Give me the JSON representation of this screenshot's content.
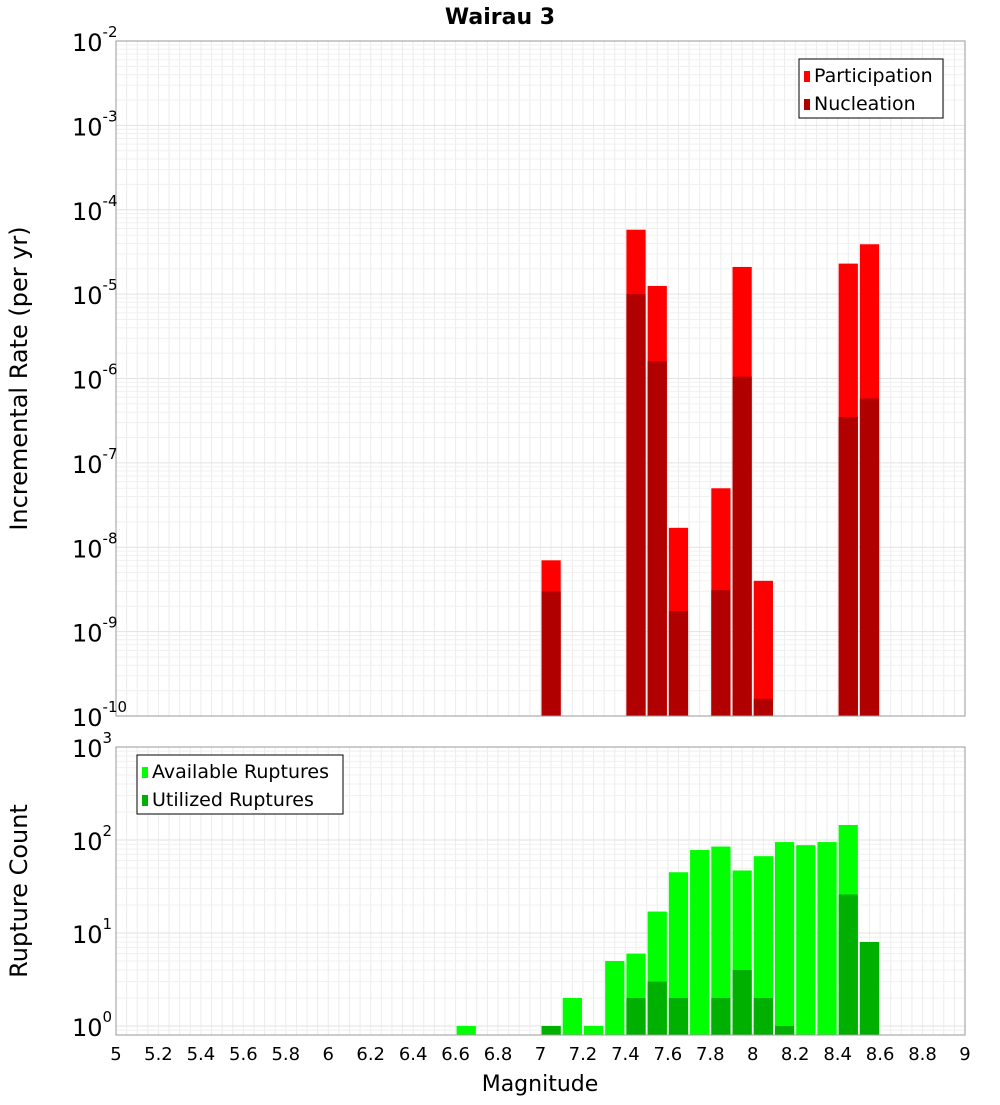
{
  "chart_data": {
    "title": "Wairau 3",
    "xlabel": "Magnitude",
    "xlim": [
      5,
      9
    ],
    "x_ticks": [
      "5",
      "5.2",
      "5.4",
      "5.6",
      "5.8",
      "6",
      "6.2",
      "6.4",
      "6.6",
      "6.8",
      "7",
      "7.2",
      "7.4",
      "7.6",
      "7.8",
      "8",
      "8.2",
      "8.4",
      "8.6",
      "8.8",
      "9"
    ],
    "bin_width": 0.1,
    "grid": true,
    "panels": [
      {
        "type": "bar",
        "ylabel": "Incremental Rate (per yr)",
        "yscale": "log",
        "ylim": [
          1e-10,
          0.01
        ],
        "y_tick_exponents": [
          "-10",
          "-9",
          "-8",
          "-7",
          "-6",
          "-5",
          "-4",
          "-3",
          "-2"
        ],
        "legend_position": "top-right",
        "series": [
          {
            "name": "Participation",
            "color": "#ff0000",
            "x": [
              7.05,
              7.45,
              7.55,
              7.65,
              7.85,
              7.95,
              8.05,
              8.45,
              8.55
            ],
            "values": [
              7e-09,
              5.8e-05,
              1.25e-05,
              1.7e-08,
              5e-08,
              2.1e-05,
              4e-09,
              2.3e-05,
              3.9e-05
            ]
          },
          {
            "name": "Nucleation",
            "color": "#b00000",
            "x": [
              7.05,
              7.45,
              7.55,
              7.65,
              7.85,
              7.95,
              8.05,
              8.45,
              8.55
            ],
            "values": [
              3e-09,
              1e-05,
              1.6e-06,
              1.75e-09,
              3.1e-09,
              1.05e-06,
              1.6e-10,
              3.5e-07,
              5.8e-07
            ]
          }
        ]
      },
      {
        "type": "bar",
        "ylabel": "Rupture Count",
        "yscale": "log",
        "ylim": [
          0.8,
          1000
        ],
        "y_tick_exponents": [
          "0",
          "1",
          "2",
          "3"
        ],
        "legend_position": "top-left",
        "series": [
          {
            "name": "Available Ruptures",
            "color": "#00ff00",
            "x": [
              6.65,
              7.05,
              7.15,
              7.25,
              7.35,
              7.45,
              7.55,
              7.65,
              7.75,
              7.85,
              7.95,
              8.05,
              8.15,
              8.25,
              8.35,
              8.45,
              8.55
            ],
            "values": [
              1,
              1,
              2,
              1,
              5,
              6,
              17,
              45,
              78,
              85,
              47,
              67,
              95,
              88,
              95,
              145,
              8
            ]
          },
          {
            "name": "Utilized Ruptures",
            "color": "#00b000",
            "x": [
              7.05,
              7.45,
              7.55,
              7.65,
              7.85,
              7.95,
              8.05,
              8.15,
              8.45,
              8.55
            ],
            "values": [
              1,
              2,
              3,
              2,
              2,
              4,
              2,
              1,
              26,
              8
            ]
          }
        ]
      }
    ]
  }
}
